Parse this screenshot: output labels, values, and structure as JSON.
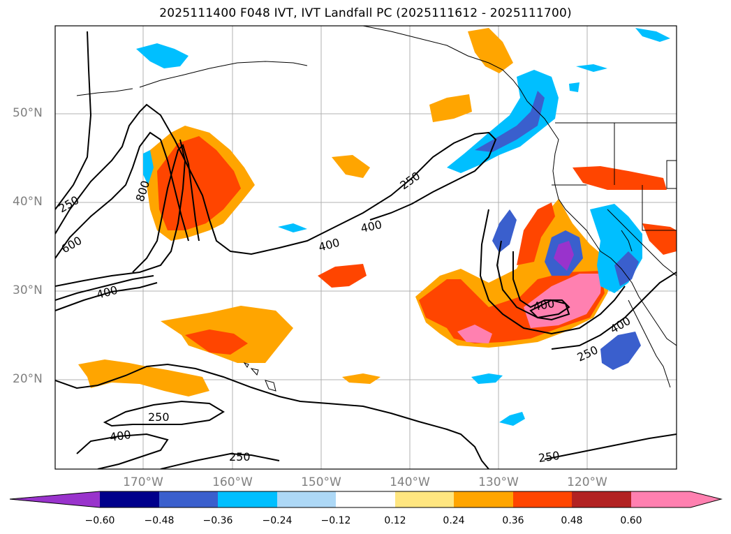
{
  "title": "2025111400 F048 IVT, IVT Landfall PC (2025111612 - 2025111700)",
  "lat_labels": [
    "50°N",
    "40°N",
    "30°N",
    "20°N"
  ],
  "lon_labels": [
    "170°W",
    "160°W",
    "150°W",
    "140°W",
    "130°W",
    "120°W"
  ],
  "contour_labels": [
    "250",
    "600",
    "800",
    "400",
    "400",
    "400",
    "250",
    "250",
    "250",
    "400",
    "400",
    "250",
    "400",
    "250"
  ],
  "colorbar": {
    "colors": [
      "#9933cc",
      "#00008b",
      "#3a5fcd",
      "#00bfff",
      "#add8f6",
      "#ffffff",
      "#ffe680",
      "#ffa500",
      "#ff4500",
      "#b22222",
      "#ff80b0",
      "#ff80b0"
    ],
    "ticks": [
      "−0.60",
      "−0.48",
      "−0.36",
      "−0.24",
      "−0.12",
      "0.12",
      "0.24",
      "0.36",
      "0.48",
      "0.60"
    ]
  }
}
